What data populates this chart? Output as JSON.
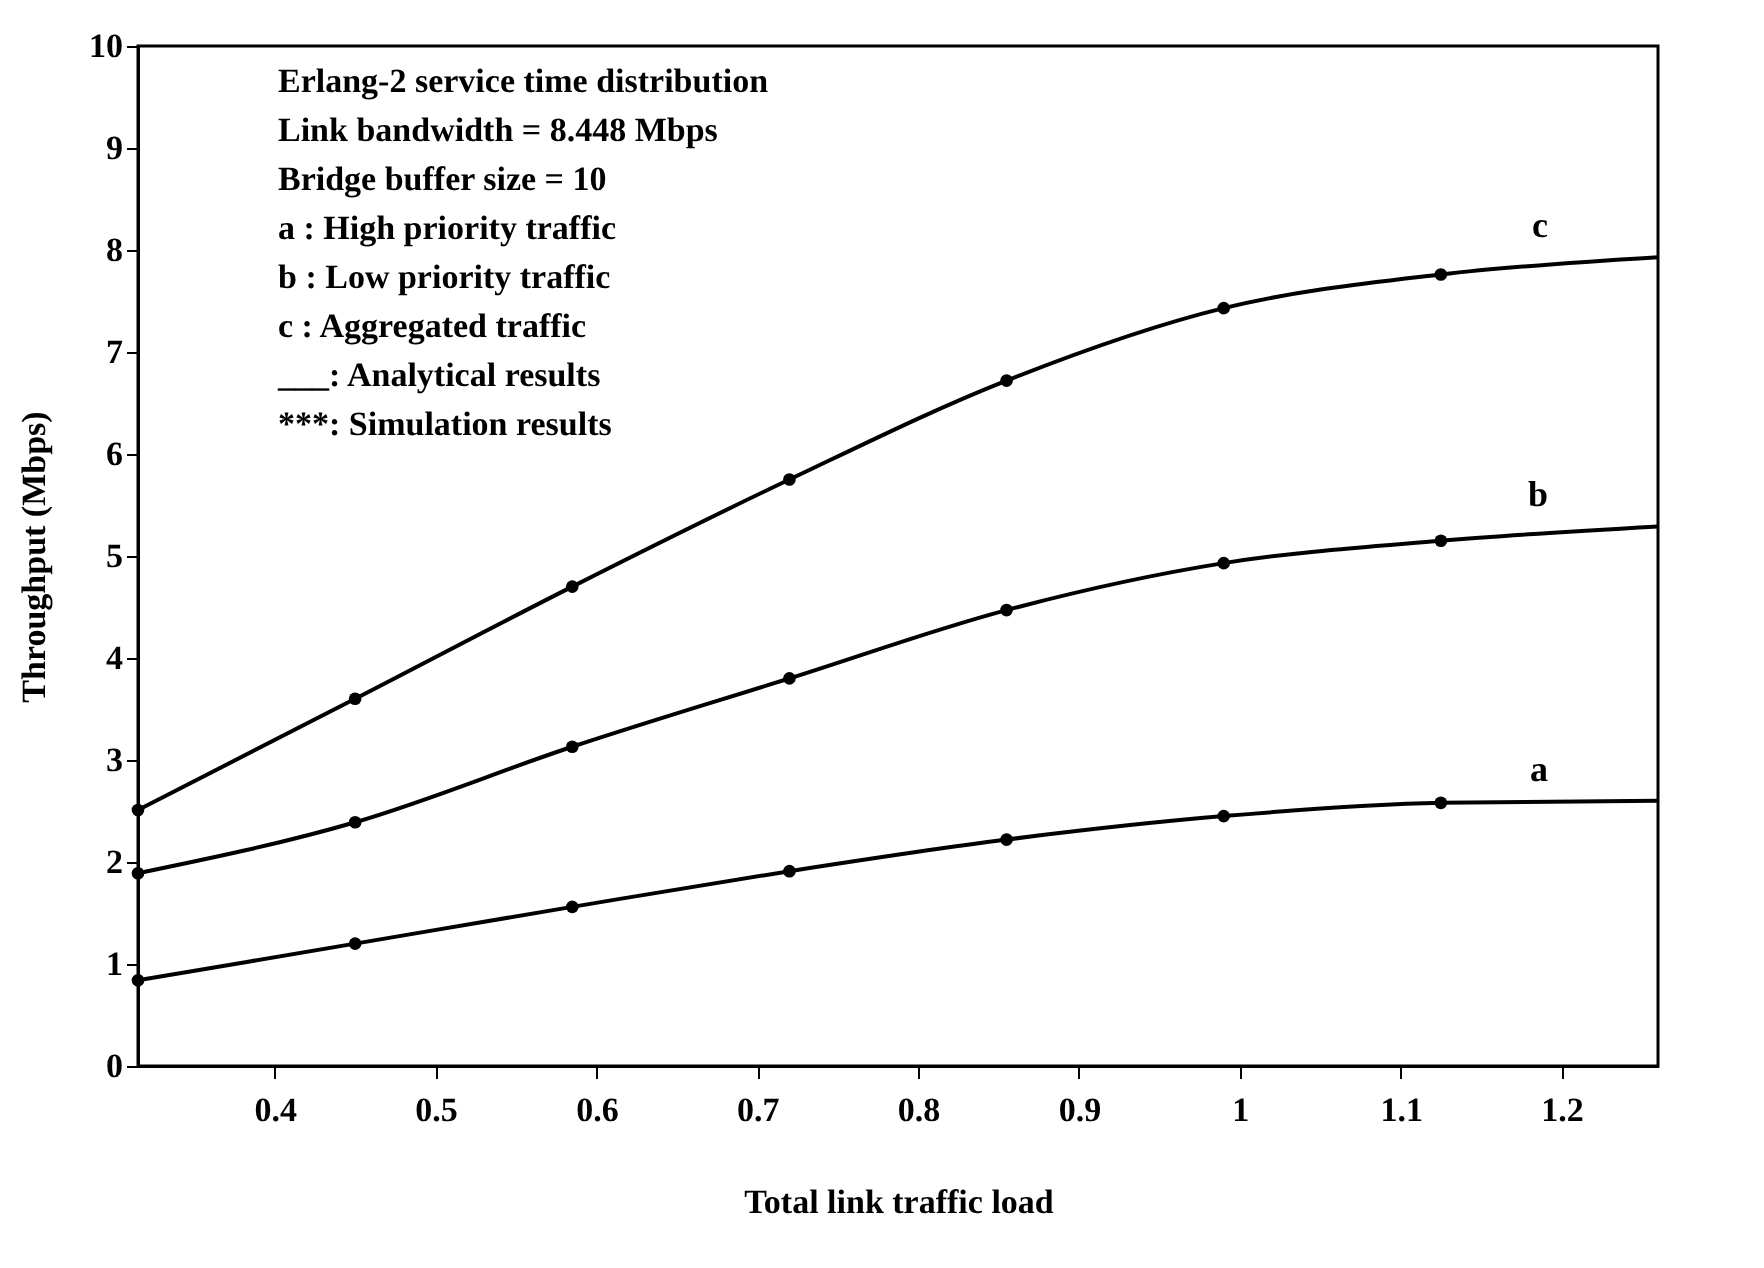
{
  "chart_data": {
    "type": "line",
    "xlabel": "Total link traffic load",
    "ylabel": "Throughput (Mbps)",
    "annotations": [
      "Erlang-2 service time distribution",
      "Link bandwidth = 8.448 Mbps",
      "Bridge buffer size = 10",
      "a : High priority traffic",
      "b : Low priority traffic",
      "c : Aggregated traffic",
      "___: Analytical results",
      "***: Simulation results"
    ],
    "series": [
      {
        "name": "a",
        "color": "#000000",
        "marker": "none",
        "x": [
          0.315,
          0.45,
          0.585,
          0.72,
          0.855,
          0.99,
          1.125,
          1.26
        ],
        "values": [
          0.84,
          1.2,
          1.56,
          1.91,
          2.22,
          2.45,
          2.58,
          2.6
        ]
      },
      {
        "name": "b",
        "color": "#000000",
        "marker": "none",
        "x": [
          0.315,
          0.45,
          0.585,
          0.72,
          0.855,
          0.99,
          1.125,
          1.26
        ],
        "values": [
          1.89,
          2.39,
          3.13,
          3.8,
          4.47,
          4.93,
          5.15,
          5.29
        ]
      },
      {
        "name": "c",
        "color": "#000000",
        "marker": "none",
        "x": [
          0.315,
          0.45,
          0.585,
          0.72,
          0.855,
          0.99,
          1.125,
          1.26
        ],
        "values": [
          2.51,
          3.6,
          4.7,
          5.75,
          6.72,
          7.43,
          7.76,
          7.93
        ]
      },
      {
        "type": "scatter",
        "color": "#000000",
        "marker": "circle",
        "x": [
          0.315,
          0.45,
          0.585,
          0.72,
          0.855,
          0.99,
          1.125
        ],
        "values": [
          0.84,
          1.2,
          1.56,
          1.91,
          2.22,
          2.45,
          2.58
        ]
      },
      {
        "type": "scatter",
        "color": "#000000",
        "marker": "circle",
        "x": [
          0.315,
          0.45,
          0.585,
          0.72,
          0.855,
          0.99,
          1.125
        ],
        "values": [
          1.89,
          2.39,
          3.13,
          3.8,
          4.47,
          4.93,
          5.15
        ]
      },
      {
        "type": "scatter",
        "color": "#000000",
        "marker": "circle",
        "x": [
          0.315,
          0.45,
          0.585,
          0.72,
          0.855,
          0.99,
          1.125
        ],
        "values": [
          2.51,
          3.6,
          4.7,
          5.75,
          6.72,
          7.43,
          7.76
        ]
      }
    ],
    "xlim": [
      0.315,
      1.26
    ],
    "xticks": [
      0.4,
      0.5,
      0.6,
      0.7,
      0.8,
      0.9,
      1,
      1.1,
      1.2
    ],
    "ylim": [
      0,
      10
    ],
    "yticks": [
      0,
      1,
      2,
      3,
      4,
      5,
      6,
      7,
      8,
      9,
      10
    ],
    "grid": false
  }
}
